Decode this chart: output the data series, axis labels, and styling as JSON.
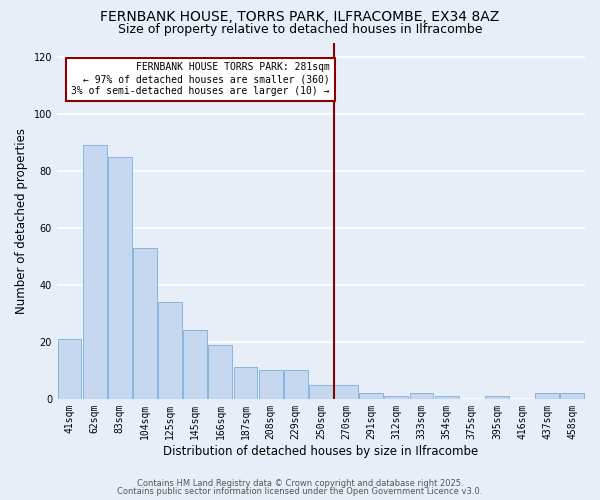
{
  "title": "FERNBANK HOUSE, TORRS PARK, ILFRACOMBE, EX34 8AZ",
  "subtitle": "Size of property relative to detached houses in Ilfracombe",
  "xlabel": "Distribution of detached houses by size in Ilfracombe",
  "ylabel": "Number of detached properties",
  "categories": [
    "41sqm",
    "62sqm",
    "83sqm",
    "104sqm",
    "125sqm",
    "145sqm",
    "166sqm",
    "187sqm",
    "208sqm",
    "229sqm",
    "250sqm",
    "270sqm",
    "291sqm",
    "312sqm",
    "333sqm",
    "354sqm",
    "375sqm",
    "395sqm",
    "416sqm",
    "437sqm",
    "458sqm"
  ],
  "values": [
    21,
    89,
    85,
    53,
    34,
    24,
    19,
    11,
    10,
    10,
    5,
    5,
    2,
    1,
    2,
    1,
    0,
    1,
    0,
    2,
    2
  ],
  "bar_color": "#c5d8f0",
  "bar_edge_color": "#7aaedc",
  "vline_x_index": 11,
  "vline_color": "#8b0000",
  "annotation_text": "FERNBANK HOUSE TORRS PARK: 281sqm\n← 97% of detached houses are smaller (360)\n3% of semi-detached houses are larger (10) →",
  "annotation_box_color": "#ffffff",
  "annotation_box_edge": "#8b0000",
  "ylim": [
    0,
    125
  ],
  "yticks": [
    0,
    20,
    40,
    60,
    80,
    100,
    120
  ],
  "bg_color": "#e8eef8",
  "grid_color": "#ffffff",
  "footer1": "Contains HM Land Registry data © Crown copyright and database right 2025.",
  "footer2": "Contains public sector information licensed under the Open Government Licence v3.0.",
  "title_fontsize": 10,
  "subtitle_fontsize": 9,
  "tick_fontsize": 7,
  "label_fontsize": 8.5,
  "annotation_fontsize": 7,
  "footer_fontsize": 6
}
